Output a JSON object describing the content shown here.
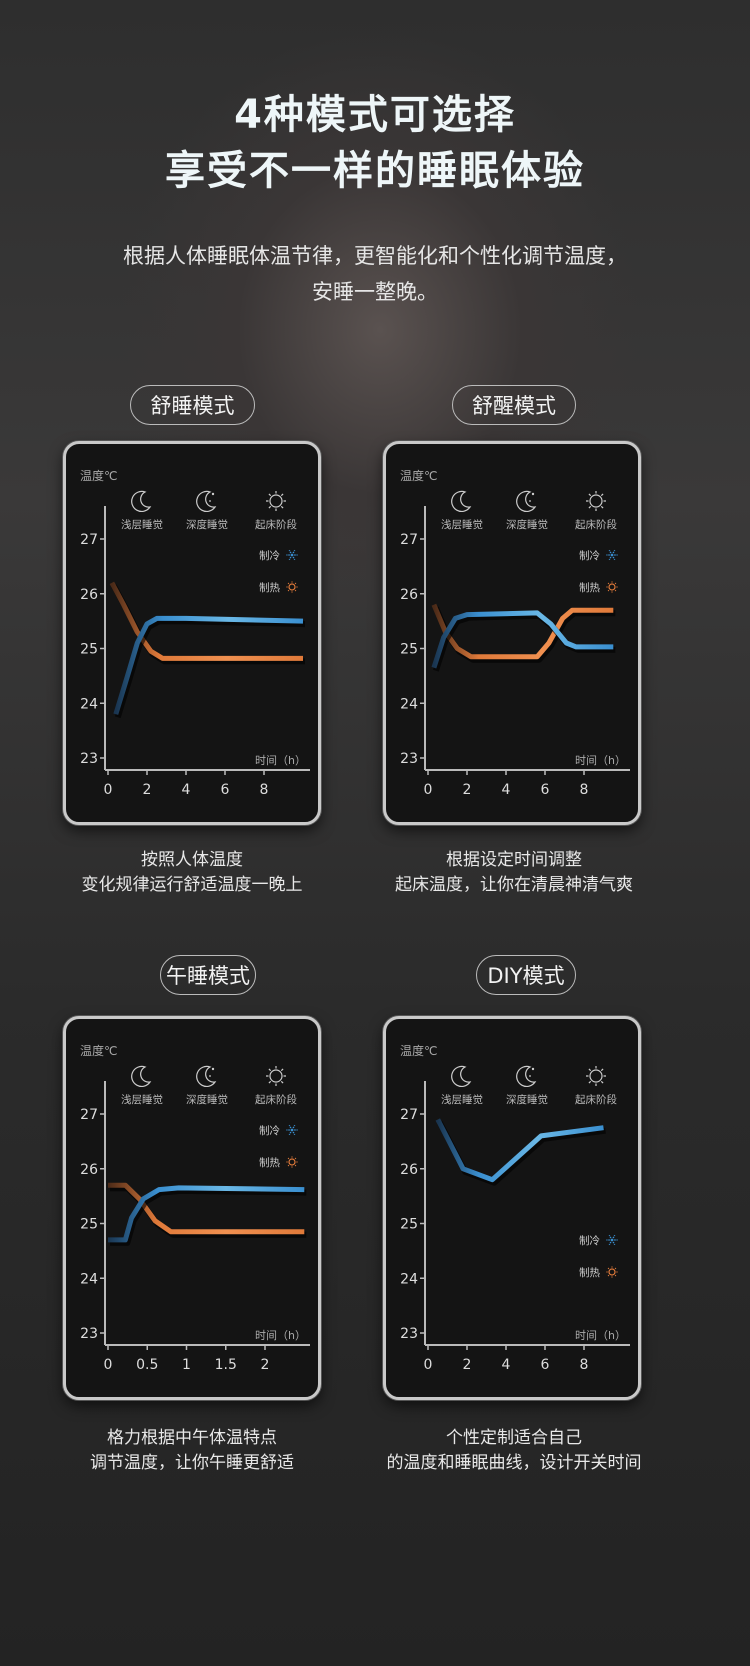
{
  "header": {
    "title_line1": "4种模式可选择",
    "title_line2": "享受不一样的睡眠体验",
    "subtitle_line1": "根据人体睡眠体温节律，更智能化和个性化调节温度，",
    "subtitle_line2": "安睡一整晚。"
  },
  "colors": {
    "cooling": "#3a8fd0",
    "heating": "#e07a3a"
  },
  "modes": [
    {
      "label": "舒睡模式",
      "caption_line1": "按照人体温度",
      "caption_line2": "变化规律运行舒适温度一晚上"
    },
    {
      "label": "舒醒模式",
      "caption_line1": "根据设定时间调整",
      "caption_line2": "起床温度，让你在清晨神清气爽"
    },
    {
      "label": "午睡模式",
      "caption_line1": "格力根据中午体温特点",
      "caption_line2": "调节温度，让你午睡更舒适"
    },
    {
      "label": "DIY模式",
      "caption_line1": "个性定制适合自己",
      "caption_line2": "的温度和睡眠曲线，设计开关时间"
    }
  ],
  "chart_data": [
    {
      "type": "line",
      "ylabel": "温度℃",
      "xlabel": "时间（h）",
      "ylim": [
        23,
        27
      ],
      "xlim": [
        0,
        10
      ],
      "yticks": [
        "23",
        "24",
        "25",
        "26",
        "27"
      ],
      "xticks": [
        "0",
        "2",
        "4",
        "6",
        "8"
      ],
      "xtick_values": [
        0,
        2,
        4,
        6,
        8
      ],
      "phases": [
        {
          "icon": "moon-icon",
          "label": "浅层睡觉"
        },
        {
          "icon": "moon-stars-icon",
          "label": "深度睡觉"
        },
        {
          "icon": "sun-icon",
          "label": "起床阶段"
        }
      ],
      "legend": [
        {
          "label": "制冷",
          "icon": "snowflake-icon"
        },
        {
          "label": "制热",
          "icon": "sun-icon"
        }
      ],
      "legend_placement": "top-right",
      "series": [
        {
          "name": "制热",
          "x": [
            0.2,
            0.8,
            1.5,
            2.2,
            2.8,
            4,
            10
          ],
          "y": [
            26.2,
            25.8,
            25.3,
            24.95,
            24.82,
            24.82,
            24.82
          ]
        },
        {
          "name": "制冷",
          "x": [
            0.4,
            1,
            1.5,
            2,
            2.5,
            4,
            10
          ],
          "y": [
            23.8,
            24.5,
            25.1,
            25.45,
            25.55,
            25.55,
            25.5
          ]
        }
      ]
    },
    {
      "type": "line",
      "ylabel": "温度℃",
      "xlabel": "时间（h）",
      "ylim": [
        23,
        27
      ],
      "xlim": [
        0,
        10
      ],
      "yticks": [
        "23",
        "24",
        "25",
        "26",
        "27"
      ],
      "xticks": [
        "0",
        "2",
        "4",
        "6",
        "8"
      ],
      "xtick_values": [
        0,
        2,
        4,
        6,
        8
      ],
      "phases": [
        {
          "icon": "moon-icon",
          "label": "浅层睡觉"
        },
        {
          "icon": "moon-stars-icon",
          "label": "深度睡觉"
        },
        {
          "icon": "sun-icon",
          "label": "起床阶段"
        }
      ],
      "legend": [
        {
          "label": "制冷",
          "icon": "snowflake-icon"
        },
        {
          "label": "制热",
          "icon": "sun-icon"
        }
      ],
      "legend_placement": "top-right",
      "series": [
        {
          "name": "制热",
          "x": [
            0.3,
            0.9,
            1.5,
            2.2,
            5.6,
            6.2,
            6.9,
            7.4,
            9.5
          ],
          "y": [
            25.8,
            25.3,
            25.0,
            24.85,
            24.85,
            25.1,
            25.55,
            25.7,
            25.7
          ]
        },
        {
          "name": "制冷",
          "x": [
            0.3,
            0.8,
            1.4,
            2,
            5.6,
            6.3,
            7.1,
            7.6,
            9.5
          ],
          "y": [
            24.65,
            25.2,
            25.55,
            25.62,
            25.65,
            25.45,
            25.1,
            25.03,
            25.03
          ]
        }
      ]
    },
    {
      "type": "line",
      "ylabel": "温度℃",
      "xlabel": "时间（h）",
      "ylim": [
        23,
        27
      ],
      "xlim": [
        0,
        2.5
      ],
      "yticks": [
        "23",
        "24",
        "25",
        "26",
        "27"
      ],
      "xticks": [
        "0",
        "0.5",
        "1",
        "1.5",
        "2"
      ],
      "xtick_values": [
        0,
        0.5,
        1,
        1.5,
        2
      ],
      "phases": [
        {
          "icon": "moon-icon",
          "label": "浅层睡觉"
        },
        {
          "icon": "moon-stars-icon",
          "label": "深度睡觉"
        },
        {
          "icon": "sun-icon",
          "label": "起床阶段"
        }
      ],
      "legend": [
        {
          "label": "制冷",
          "icon": "snowflake-icon"
        },
        {
          "label": "制热",
          "icon": "sun-icon"
        }
      ],
      "legend_placement": "top-right",
      "series": [
        {
          "name": "制热",
          "x": [
            0,
            0.22,
            0.4,
            0.6,
            0.8,
            2.5
          ],
          "y": [
            25.7,
            25.7,
            25.45,
            25.05,
            24.85,
            24.85
          ]
        },
        {
          "name": "制冷",
          "x": [
            0,
            0.22,
            0.3,
            0.45,
            0.65,
            0.9,
            2.5
          ],
          "y": [
            24.7,
            24.7,
            25.1,
            25.45,
            25.62,
            25.65,
            25.62
          ]
        }
      ]
    },
    {
      "type": "line",
      "ylabel": "温度℃",
      "xlabel": "时间（h）",
      "ylim": [
        23,
        27
      ],
      "xlim": [
        0,
        10
      ],
      "yticks": [
        "23",
        "24",
        "25",
        "26",
        "27"
      ],
      "xticks": [
        "0",
        "2",
        "4",
        "6",
        "8"
      ],
      "xtick_values": [
        0,
        2,
        4,
        6,
        8
      ],
      "phases": [
        {
          "icon": "moon-icon",
          "label": "浅层睡觉"
        },
        {
          "icon": "moon-stars-icon",
          "label": "深度睡觉"
        },
        {
          "icon": "sun-icon",
          "label": "起床阶段"
        }
      ],
      "legend": [
        {
          "label": "制冷",
          "icon": "snowflake-icon"
        },
        {
          "label": "制热",
          "icon": "sun-icon"
        }
      ],
      "legend_placement": "center-right",
      "series": [
        {
          "name": "制冷",
          "x": [
            0.5,
            1.8,
            3.3,
            5.8,
            9
          ],
          "y": [
            26.9,
            26.0,
            25.8,
            26.6,
            26.75
          ]
        }
      ]
    }
  ]
}
